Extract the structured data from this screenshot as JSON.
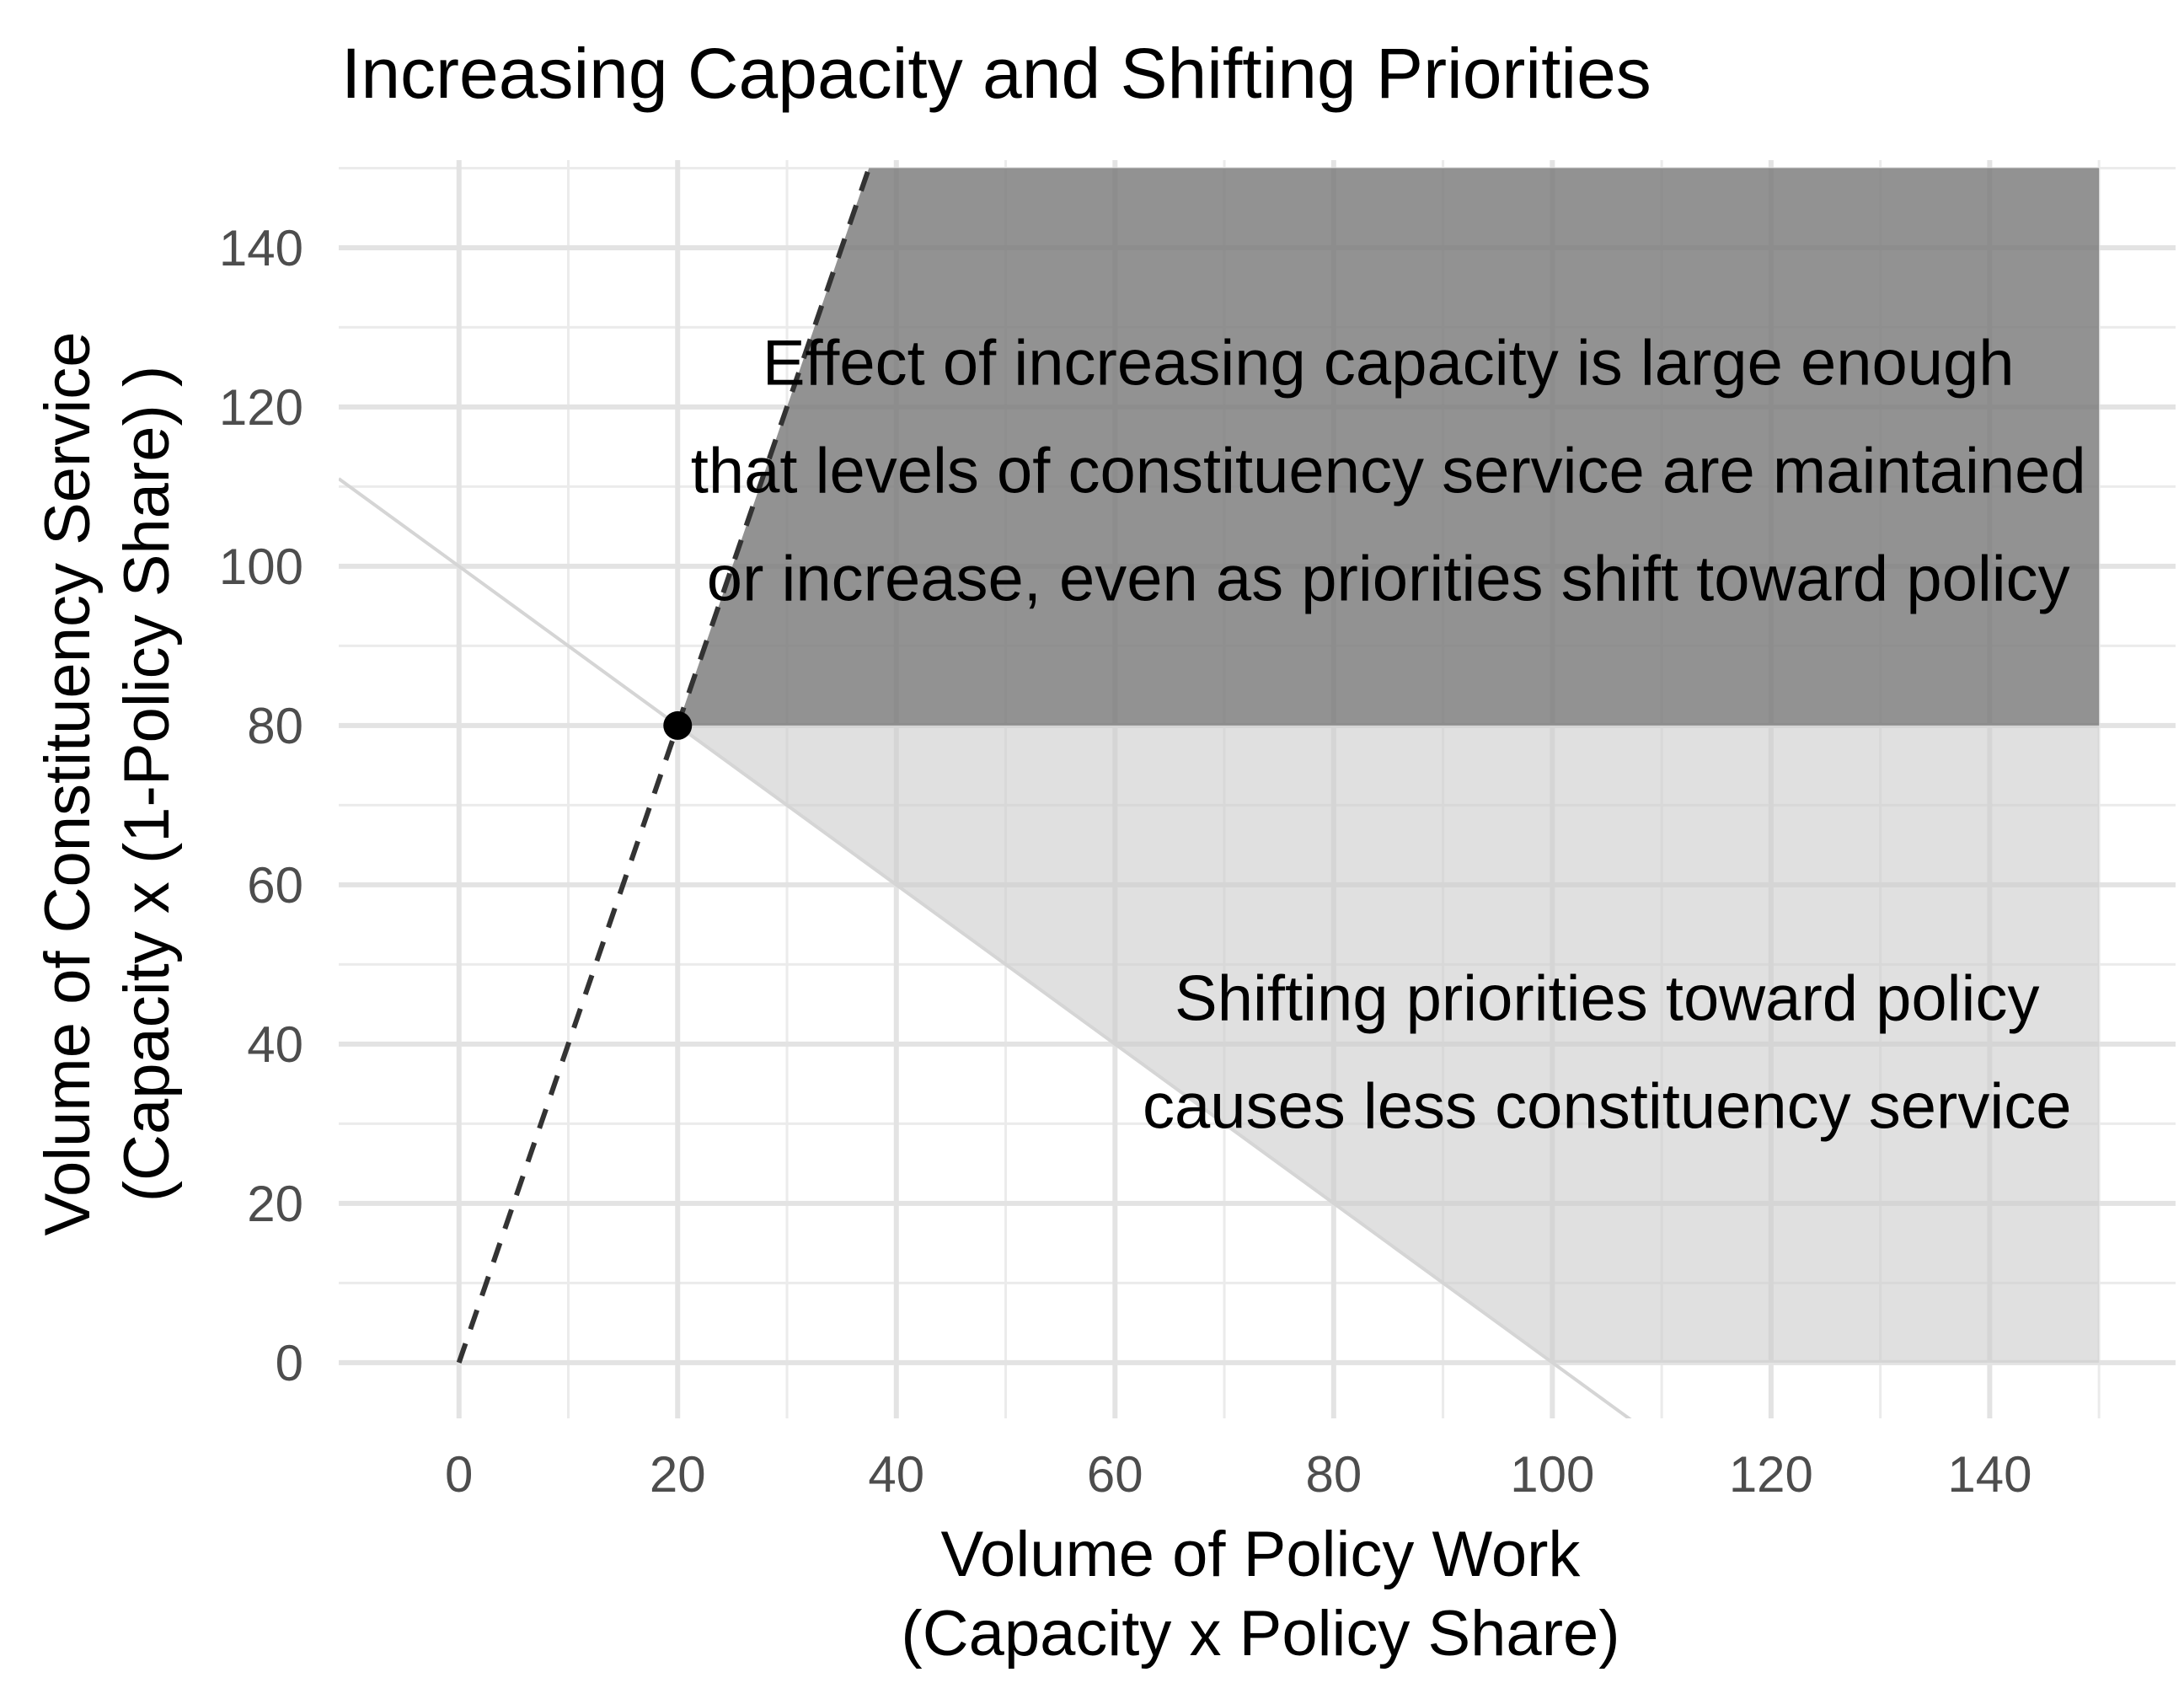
{
  "chart_data": {
    "type": "area",
    "title": "Increasing Capacity and Shifting Priorities",
    "xlabel": [
      "Volume of Policy Work",
      "(Capacity x Policy Share)"
    ],
    "ylabel": [
      "Volume of Constituency Service",
      "(Capacity x (1-Policy Share) )"
    ],
    "xlim": [
      -11,
      157
    ],
    "ylim": [
      -7,
      151
    ],
    "x_ticks": [
      0,
      20,
      40,
      60,
      80,
      100,
      120,
      140
    ],
    "y_ticks": [
      0,
      20,
      40,
      60,
      80,
      100,
      120,
      140
    ],
    "x_minor_ticks": [
      10,
      30,
      50,
      70,
      90,
      110,
      130,
      150
    ],
    "y_minor_ticks": [
      10,
      30,
      50,
      70,
      90,
      110,
      130,
      150
    ],
    "grid": true,
    "regions": [
      {
        "name": "dark-region",
        "color": "#7a7a7a",
        "opacity": 0.82,
        "polygon": [
          [
            20,
            80
          ],
          [
            37.5,
            150
          ],
          [
            150,
            150
          ],
          [
            150,
            80
          ]
        ]
      },
      {
        "name": "light-region",
        "color": "#cccccc",
        "opacity": 0.6,
        "polygon": [
          [
            20,
            80
          ],
          [
            150,
            80
          ],
          [
            150,
            0
          ],
          [
            100,
            0
          ]
        ]
      }
    ],
    "series": [
      {
        "style": "dashed",
        "color": "#333333",
        "points": [
          [
            0,
            0
          ],
          [
            37.5,
            150
          ]
        ]
      },
      {
        "style": "solid",
        "color": "#d5d5d5",
        "points": [
          [
            -11,
            111
          ],
          [
            107.5,
            -7.5
          ]
        ]
      }
    ],
    "points": [
      {
        "x": 20,
        "y": 80,
        "color": "#000000"
      }
    ],
    "annotations": [
      {
        "lines": [
          "Effect of increasing capacity is large enough",
          "that levels of constituency service are maintained",
          "or increase, even as priorities shift toward policy"
        ],
        "x": 85,
        "y": 112
      },
      {
        "lines": [
          "Shifting priorities toward policy",
          "causes less constituency service"
        ],
        "x": 105,
        "y": 39
      }
    ]
  }
}
